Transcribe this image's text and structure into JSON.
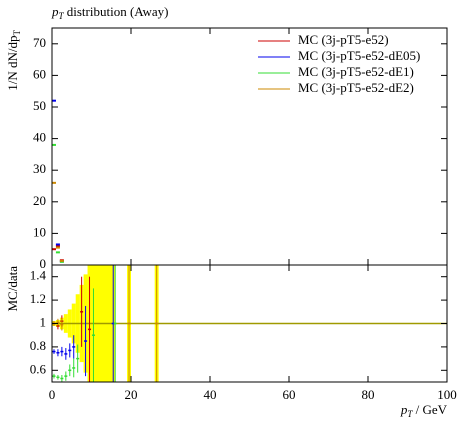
{
  "chart_data": [
    {
      "type": "step",
      "title": {
        "symbol": "p",
        "sub": "T",
        "text": " distribution (Away)"
      },
      "y_label": {
        "text": "1/N dN/dp",
        "sub": "T"
      },
      "xlim": [
        0,
        100
      ],
      "xticks": [
        0,
        20,
        40,
        60,
        80,
        100
      ],
      "ylim": [
        0,
        75
      ],
      "yticks": [
        0,
        10,
        20,
        30,
        40,
        50,
        60,
        70
      ],
      "legend": "upper right",
      "series": [
        {
          "name": "MC (3j-pT5-e52)",
          "color": "#cc0000",
          "x": [
            0.5,
            1.5,
            2.5
          ],
          "values": [
            5,
            6,
            1.5
          ]
        },
        {
          "name": "MC (3j-pT5-e52-dE05)",
          "color": "#0000ee",
          "x": [
            0.5,
            1.5,
            2.5
          ],
          "values": [
            52,
            6.5,
            1.2
          ]
        },
        {
          "name": "MC (3j-pT5-e52-dE1)",
          "color": "#33dd33",
          "x": [
            0.5,
            1.5,
            2.5
          ],
          "values": [
            38,
            4,
            1
          ]
        },
        {
          "name": "MC (3j-pT5-e52-dE2)",
          "color": "#cc8800",
          "x": [
            0.5,
            1.5,
            2.5
          ],
          "values": [
            26,
            5.5,
            1.3
          ]
        }
      ]
    },
    {
      "type": "ratio",
      "y_label": "MC/data",
      "x_label": {
        "symbol": "p",
        "sub": "T",
        "text": " / GeV"
      },
      "xlim": [
        0,
        100
      ],
      "xticks": [
        0,
        20,
        40,
        60,
        80,
        100
      ],
      "ylim": [
        0.5,
        1.5
      ],
      "yticks": [
        0.6,
        0.8,
        1,
        1.2,
        1.4
      ],
      "reference": 1,
      "reference_color": "#a09a00",
      "band": {
        "color": "#ffff00",
        "x0": [
          0,
          1,
          2,
          3,
          4,
          5,
          6,
          7,
          8,
          9,
          10,
          19,
          26
        ],
        "x1": [
          1,
          2,
          3,
          4,
          5,
          6,
          7,
          8,
          9,
          10,
          16,
          20,
          27
        ],
        "low": [
          0.98,
          0.97,
          0.95,
          0.92,
          0.88,
          0.83,
          0.75,
          0.67,
          0.58,
          0.5,
          0.5,
          0.5,
          0.5
        ],
        "high": [
          1.02,
          1.03,
          1.05,
          1.08,
          1.12,
          1.17,
          1.25,
          1.33,
          1.42,
          1.5,
          1.5,
          1.5,
          1.5
        ]
      },
      "series": [
        {
          "color": "#cc0000",
          "x": [
            0.5,
            1.5,
            2.5,
            7.5,
            9.5
          ],
          "values": [
            1,
            0.98,
            1.02,
            1.1,
            0.95
          ],
          "errors": [
            0.02,
            0.03,
            0.05,
            0.3,
            0.45
          ]
        },
        {
          "color": "#0000ee",
          "x": [
            0.5,
            1.5,
            2.5,
            3.5,
            4.5,
            5.5,
            8.5,
            15.5
          ],
          "values": [
            0.76,
            0.75,
            0.76,
            0.74,
            0.77,
            0.8,
            0.85,
            1
          ],
          "errors": [
            0.02,
            0.03,
            0.04,
            0.05,
            0.06,
            0.1,
            0.3,
            0.5
          ]
        },
        {
          "color": "#33dd33",
          "x": [
            0.5,
            1.5,
            2.5,
            3.5,
            4.5,
            5.5,
            6.5,
            10.5,
            16
          ],
          "values": [
            0.55,
            0.54,
            0.53,
            0.55,
            0.6,
            0.62,
            0.7,
            0.9,
            1
          ],
          "errors": [
            0.02,
            0.02,
            0.03,
            0.04,
            0.05,
            0.08,
            0.12,
            0.4,
            0.5
          ]
        },
        {
          "color": "#cc8800",
          "x": [
            0.5,
            1.5,
            2.5,
            19.5,
            26.5
          ],
          "values": [
            1,
            1.01,
            0.99,
            1,
            1
          ],
          "errors": [
            0.02,
            0.03,
            0.05,
            0.5,
            0.5
          ]
        }
      ]
    }
  ]
}
